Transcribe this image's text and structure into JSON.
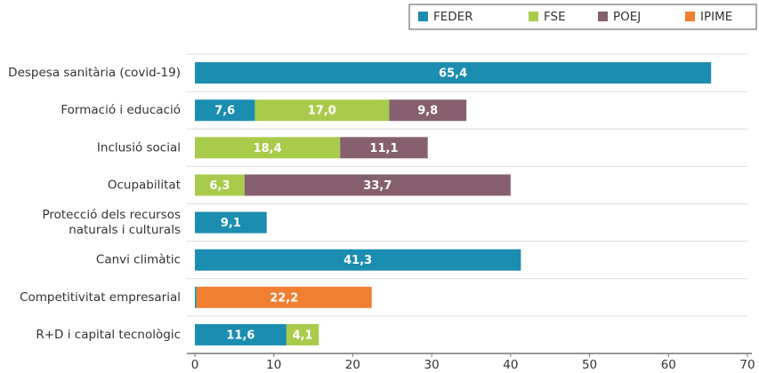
{
  "chart_data": {
    "type": "stacked_barh",
    "categories": [
      "Despesa sanitària (covid-19)",
      "Formació i educació",
      "Inclusió social",
      "Ocupabilitat",
      "Protecció dels recursos\nnaturals i culturals",
      "Canvi climàtic",
      "Competitivitat empresarial",
      "R+D i capital tecnològic"
    ],
    "series": [
      {
        "name": "FEDER",
        "color": "#1b8db0",
        "values": [
          65.4,
          7.6,
          null,
          null,
          9.1,
          41.3,
          0.2,
          11.6
        ],
        "value_labels": [
          "65,4",
          "7,6",
          null,
          null,
          "9,1",
          "41,3",
          "0,2",
          "11,6"
        ]
      },
      {
        "name": "FSE",
        "color": "#a9cb4c",
        "values": [
          null,
          17.0,
          18.4,
          6.3,
          null,
          null,
          null,
          4.1
        ],
        "value_labels": [
          null,
          "17,0",
          "18,4",
          "6,3",
          null,
          null,
          null,
          "4,1"
        ]
      },
      {
        "name": "POEJ",
        "color": "#86606f",
        "values": [
          null,
          9.8,
          11.1,
          33.7,
          null,
          null,
          null,
          null
        ],
        "value_labels": [
          null,
          "9,8",
          "11,1",
          "33,7",
          null,
          null,
          null,
          null
        ]
      },
      {
        "name": "IPIME",
        "color": "#f07f32",
        "values": [
          null,
          null,
          null,
          null,
          null,
          null,
          22.2,
          null
        ],
        "value_labels": [
          null,
          null,
          null,
          null,
          null,
          null,
          "22,2",
          null
        ]
      }
    ],
    "xlim": [
      0,
      70
    ],
    "xticks": [
      0,
      10,
      20,
      30,
      40,
      50,
      60,
      70
    ],
    "legend": "top-right"
  }
}
